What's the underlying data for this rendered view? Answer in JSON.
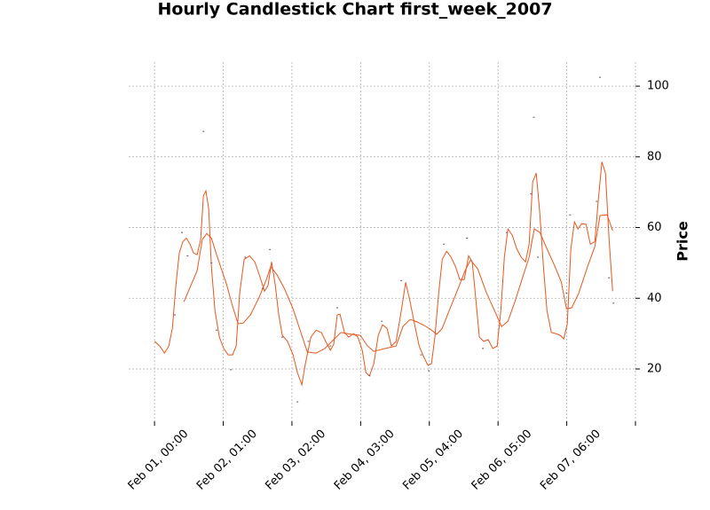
{
  "chart_data": {
    "type": "candlestick",
    "title": "Hourly Candlestick Chart first_week_2007",
    "y_label": "Price",
    "xlim": [
      -9.4,
      175
    ],
    "ylim": [
      5.2,
      106.8
    ],
    "xticks": [
      0,
      25,
      50,
      75,
      100,
      125,
      150,
      175
    ],
    "xtick_labels": [
      "Feb 01, 00:00",
      "Feb 02, 01:00",
      "Feb 03, 02:00",
      "Feb 04, 03:00",
      "Feb 05, 04:00",
      "Feb 06, 05:00",
      "Feb 07, 06:00",
      null
    ],
    "yticks": [
      20,
      40,
      60,
      80,
      100
    ],
    "grid": true,
    "candle_color": "#555555",
    "candles": {
      "x": [
        7.4,
        10,
        12,
        17.8,
        20.7,
        22.6,
        27.8,
        33,
        39.4,
        42,
        46.5,
        52,
        56,
        64,
        66.5,
        78.2,
        82.7,
        89.8,
        97,
        99.8,
        105.3,
        113.7,
        119.5,
        128.2,
        137,
        138,
        139.5,
        149.9,
        151.2,
        160.9,
        162.1,
        165.4,
        167
      ],
      "values": [
        35.3,
        58.6,
        52,
        87.2,
        50,
        31,
        19.8,
        51.6,
        42.8,
        53.8,
        29,
        10.7,
        27.8,
        26.5,
        37.3,
        18.2,
        33.5,
        45,
        24,
        19.5,
        55.3,
        57,
        25.8,
        58.6,
        69.5,
        91.2,
        51.6,
        41.5,
        63.6,
        67.4,
        102.5,
        45.8,
        38.6
      ]
    },
    "lines": [
      {
        "color": "#e8561e",
        "x": [
          0,
          1.9,
          3.6,
          5.2,
          6.5,
          7.8,
          9,
          10.3,
          11.6,
          12.9,
          14.2,
          15.5,
          16.8,
          17.8,
          18.7,
          19.7,
          20.7,
          22,
          23.6,
          25.2,
          26.8,
          28.4,
          29.7,
          31,
          32.6,
          34.6,
          36.5,
          38.4,
          40,
          41.3,
          42.6,
          43.9,
          45.2,
          46.5,
          48.4,
          50.4,
          52,
          53.6,
          54.9,
          56.9,
          58.8,
          60.7,
          62.3,
          64,
          65.2,
          66.5,
          67.5,
          69.1,
          70.7,
          72.4,
          74,
          75.6,
          76.9,
          78.2,
          79.8,
          81.4,
          83,
          84.6,
          86.2,
          87.9,
          89.8,
          91.4,
          93,
          94.6,
          96.3,
          97.9,
          99.5,
          100.8,
          102,
          103.4,
          104.7,
          106.3,
          107.9,
          109.5,
          111.1,
          112.7,
          114.3,
          115.6,
          117,
          118.2,
          119.8,
          121.4,
          123.1,
          124.7,
          126,
          127.3,
          128.6,
          130.2,
          131.8,
          133.4,
          135,
          136.3,
          137.6,
          138.9,
          140.2,
          141.5,
          142.8,
          144.4,
          146,
          147.6,
          148.9,
          150.2,
          151.5,
          152.8,
          154.1,
          155.4,
          157,
          158.6,
          160.2,
          161.5,
          162.8,
          164.1,
          165.4,
          166.7
        ],
        "values": [
          27.8,
          26.5,
          24.5,
          26.5,
          31.5,
          44,
          52.8,
          56,
          57,
          55.3,
          52.8,
          52.3,
          56.6,
          69,
          70.4,
          65.4,
          49,
          36.5,
          29,
          25.8,
          24,
          24,
          26.5,
          41.5,
          51,
          52,
          50.3,
          46,
          42,
          43.6,
          50.3,
          44,
          35.3,
          29.5,
          27.8,
          24,
          19,
          15.5,
          21.5,
          29,
          31,
          30.3,
          27.8,
          25.3,
          27,
          35.3,
          35.5,
          30.3,
          29,
          30,
          29,
          25.3,
          19,
          18,
          21.5,
          29.5,
          32.5,
          31.5,
          26.5,
          27.8,
          36.5,
          44.5,
          39,
          32.8,
          26.5,
          23.5,
          21,
          21.5,
          29,
          41.5,
          51,
          53.3,
          51.6,
          49,
          45.3,
          45.3,
          52,
          50.3,
          39,
          29,
          27.8,
          28.3,
          25.8,
          26.5,
          36.5,
          51.6,
          59.6,
          57.8,
          54,
          51.6,
          50.3,
          55.3,
          72.9,
          75.4,
          64.1,
          49,
          36.5,
          30.3,
          30,
          29.5,
          28.5,
          32.8,
          54,
          61.6,
          59.6,
          61.1,
          60.9,
          55.3,
          56,
          67.9,
          78.6,
          75.4,
          56.6,
          42
        ]
      },
      {
        "color": "#e8561e",
        "x": [
          10.7,
          13.2,
          15.5,
          17.4,
          19,
          20.7,
          22.9,
          26.2,
          28.4,
          30.4,
          32.3,
          34.9,
          38.1,
          40.7,
          42.3,
          44.6,
          47.2,
          50.4,
          53.6,
          55.6,
          58.8,
          62,
          65.2,
          67.8,
          71.7,
          74.9,
          77.5,
          79.8,
          84,
          87.9,
          90.4,
          93,
          95.6,
          98.2,
          100.8,
          102.7,
          104.7,
          107.2,
          110.5,
          113,
          115,
          117.6,
          120.8,
          124,
          126.3,
          128.6,
          131.1,
          133.7,
          136.3,
          138.2,
          140.2,
          142.8,
          145.7,
          148,
          149.9,
          151.8,
          154.4,
          157.6,
          160.2,
          162.1,
          164.7,
          166.7
        ],
        "values": [
          39,
          43.6,
          47.8,
          56.6,
          58.3,
          57,
          51.6,
          44,
          37.8,
          32.8,
          33,
          35.3,
          40.3,
          45.3,
          49,
          46.6,
          42.8,
          37,
          29.5,
          24.8,
          24.5,
          25.8,
          28.3,
          30.3,
          29.8,
          29.5,
          26.5,
          25,
          25.8,
          26.5,
          32,
          34,
          33.3,
          32.3,
          31,
          29.8,
          31.5,
          36.5,
          42.8,
          47.8,
          50.8,
          48.3,
          41.5,
          36,
          32,
          33.5,
          39,
          45.3,
          51.6,
          59.6,
          58.6,
          54,
          49,
          44.6,
          37,
          37.3,
          41.5,
          49,
          54.6,
          63.4,
          63.6,
          59.1
        ]
      }
    ]
  }
}
